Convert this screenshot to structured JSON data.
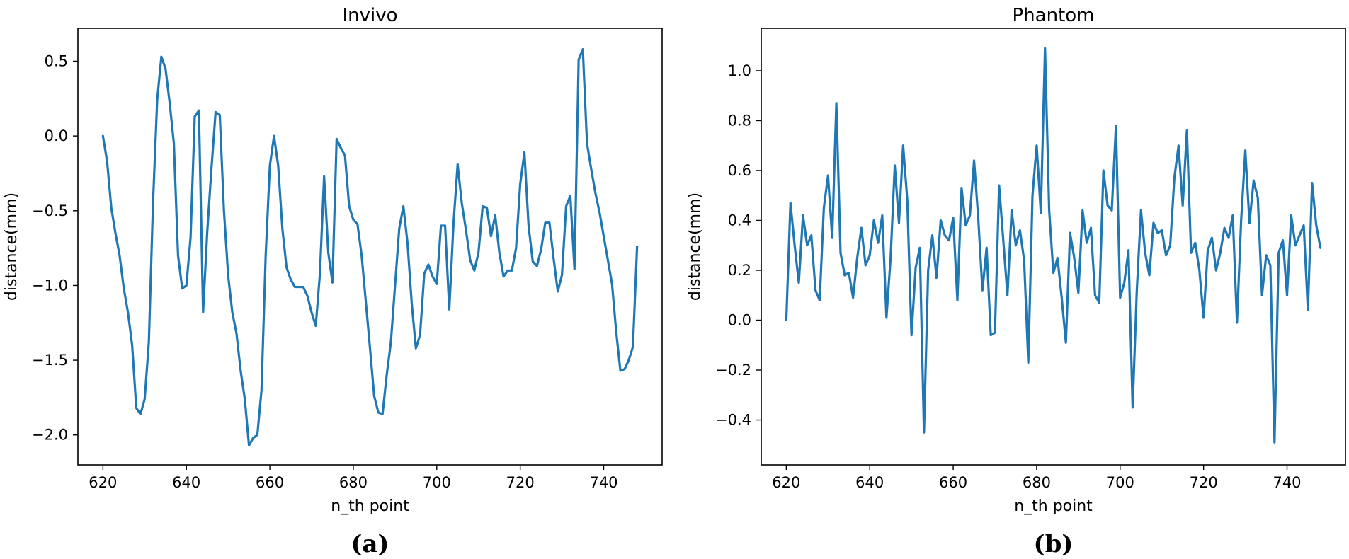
{
  "colors": {
    "line": "#1f77b4",
    "axes": "#000000",
    "background": "#ffffff"
  },
  "chart_data": [
    {
      "type": "line",
      "title": "Invivo",
      "caption": "(a)",
      "xlabel": "n_th point",
      "ylabel": "distance(mm)",
      "xlim": [
        614,
        754
      ],
      "ylim": [
        -2.2,
        0.72
      ],
      "xticks": [
        620,
        640,
        660,
        680,
        700,
        720,
        740
      ],
      "xtick_labels": [
        "620",
        "640",
        "660",
        "680",
        "700",
        "720",
        "740"
      ],
      "yticks": [
        0.5,
        0.0,
        -0.5,
        -1.0,
        -1.5,
        -2.0
      ],
      "ytick_labels": [
        "0.5",
        "0.0",
        "−0.5",
        "−1.0",
        "−1.5",
        "−2.0"
      ],
      "grid": false,
      "series": [
        {
          "x": [
            620,
            621,
            622,
            623,
            624,
            625,
            626,
            627,
            628,
            629,
            630,
            631,
            632,
            633,
            634,
            635,
            636,
            637,
            638,
            639,
            640,
            641,
            642,
            643,
            644,
            645,
            646,
            647,
            648,
            649,
            650,
            651,
            652,
            653,
            654,
            655,
            656,
            657,
            658,
            659,
            660,
            661,
            662,
            663,
            664,
            665,
            666,
            667,
            668,
            669,
            670,
            671,
            672,
            673,
            674,
            675,
            676,
            677,
            678,
            679,
            680,
            681,
            682,
            683,
            684,
            685,
            686,
            687,
            688,
            689,
            690,
            691,
            692,
            693,
            694,
            695,
            696,
            697,
            698,
            699,
            700,
            701,
            702,
            703,
            704,
            705,
            706,
            707,
            708,
            709,
            710,
            711,
            712,
            713,
            714,
            715,
            716,
            717,
            718,
            719,
            720,
            721,
            722,
            723,
            724,
            725,
            726,
            727,
            728,
            729,
            730,
            731,
            732,
            733,
            734,
            735,
            736,
            737,
            738,
            739,
            740,
            741,
            742,
            743,
            744,
            745,
            746,
            747,
            748
          ],
          "y": [
            0.0,
            -0.17,
            -0.48,
            -0.65,
            -0.8,
            -1.02,
            -1.18,
            -1.4,
            -1.82,
            -1.86,
            -1.76,
            -1.38,
            -0.45,
            0.24,
            0.53,
            0.45,
            0.22,
            -0.05,
            -0.8,
            -1.02,
            -1.0,
            -0.68,
            0.13,
            0.17,
            -1.18,
            -0.64,
            -0.22,
            0.16,
            0.14,
            -0.5,
            -0.93,
            -1.18,
            -1.32,
            -1.57,
            -1.76,
            -2.07,
            -2.02,
            -2.0,
            -1.7,
            -0.8,
            -0.2,
            0.0,
            -0.2,
            -0.62,
            -0.88,
            -0.96,
            -1.01,
            -1.01,
            -1.01,
            -1.07,
            -1.18,
            -1.27,
            -0.92,
            -0.27,
            -0.78,
            -0.98,
            -0.02,
            -0.08,
            -0.13,
            -0.47,
            -0.56,
            -0.59,
            -0.8,
            -1.11,
            -1.42,
            -1.74,
            -1.85,
            -1.86,
            -1.6,
            -1.38,
            -1.0,
            -0.62,
            -0.47,
            -0.72,
            -1.12,
            -1.42,
            -1.33,
            -0.92,
            -0.86,
            -0.94,
            -0.99,
            -0.6,
            -0.6,
            -1.16,
            -0.59,
            -0.19,
            -0.45,
            -0.63,
            -0.83,
            -0.9,
            -0.78,
            -0.47,
            -0.48,
            -0.67,
            -0.53,
            -0.78,
            -0.94,
            -0.9,
            -0.9,
            -0.75,
            -0.32,
            -0.11,
            -0.6,
            -0.84,
            -0.87,
            -0.76,
            -0.58,
            -0.58,
            -0.82,
            -1.04,
            -0.93,
            -0.47,
            -0.4,
            -0.89,
            0.51,
            0.58,
            -0.05,
            -0.22,
            -0.38,
            -0.51,
            -0.67,
            -0.83,
            -0.99,
            -1.31,
            -1.57,
            -1.56,
            -1.5,
            -1.41,
            -0.74
          ]
        }
      ]
    },
    {
      "type": "line",
      "title": "Phantom",
      "caption": "(b)",
      "xlabel": "n_th point",
      "ylabel": "distance(mm)",
      "xlim": [
        614,
        754
      ],
      "ylim": [
        -0.58,
        1.17
      ],
      "xticks": [
        620,
        640,
        660,
        680,
        700,
        720,
        740
      ],
      "xtick_labels": [
        "620",
        "640",
        "660",
        "680",
        "700",
        "720",
        "740"
      ],
      "yticks": [
        1.0,
        0.8,
        0.6,
        0.4,
        0.2,
        0.0,
        -0.2,
        -0.4
      ],
      "ytick_labels": [
        "1.0",
        "0.8",
        "0.6",
        "0.4",
        "0.2",
        "0.0",
        "−0.2",
        "−0.4"
      ],
      "grid": false,
      "series": [
        {
          "x": [
            620,
            621,
            622,
            623,
            624,
            625,
            626,
            627,
            628,
            629,
            630,
            631,
            632,
            633,
            634,
            635,
            636,
            637,
            638,
            639,
            640,
            641,
            642,
            643,
            644,
            645,
            646,
            647,
            648,
            649,
            650,
            651,
            652,
            653,
            654,
            655,
            656,
            657,
            658,
            659,
            660,
            661,
            662,
            663,
            664,
            665,
            666,
            667,
            668,
            669,
            670,
            671,
            672,
            673,
            674,
            675,
            676,
            677,
            678,
            679,
            680,
            681,
            682,
            683,
            684,
            685,
            686,
            687,
            688,
            689,
            690,
            691,
            692,
            693,
            694,
            695,
            696,
            697,
            698,
            699,
            700,
            701,
            702,
            703,
            704,
            705,
            706,
            707,
            708,
            709,
            710,
            711,
            712,
            713,
            714,
            715,
            716,
            717,
            718,
            719,
            720,
            721,
            722,
            723,
            724,
            725,
            726,
            727,
            728,
            729,
            730,
            731,
            732,
            733,
            734,
            735,
            736,
            737,
            738,
            739,
            740,
            741,
            742,
            743,
            744,
            745,
            746,
            747,
            748
          ],
          "y": [
            0.0,
            0.47,
            0.3,
            0.15,
            0.42,
            0.3,
            0.34,
            0.12,
            0.08,
            0.45,
            0.58,
            0.33,
            0.87,
            0.27,
            0.18,
            0.19,
            0.09,
            0.25,
            0.37,
            0.22,
            0.26,
            0.4,
            0.31,
            0.42,
            0.01,
            0.25,
            0.62,
            0.39,
            0.7,
            0.48,
            -0.06,
            0.21,
            0.29,
            -0.45,
            0.2,
            0.34,
            0.17,
            0.4,
            0.34,
            0.32,
            0.41,
            0.08,
            0.53,
            0.38,
            0.42,
            0.64,
            0.41,
            0.12,
            0.29,
            -0.06,
            -0.05,
            0.54,
            0.32,
            0.1,
            0.44,
            0.3,
            0.36,
            0.24,
            -0.17,
            0.5,
            0.7,
            0.43,
            1.09,
            0.44,
            0.19,
            0.25,
            0.09,
            -0.09,
            0.35,
            0.25,
            0.11,
            0.44,
            0.31,
            0.37,
            0.1,
            0.07,
            0.6,
            0.46,
            0.44,
            0.78,
            0.09,
            0.15,
            0.28,
            -0.35,
            0.12,
            0.44,
            0.27,
            0.18,
            0.39,
            0.35,
            0.36,
            0.26,
            0.3,
            0.57,
            0.7,
            0.46,
            0.76,
            0.27,
            0.31,
            0.2,
            0.01,
            0.28,
            0.33,
            0.2,
            0.27,
            0.37,
            0.33,
            0.42,
            -0.01,
            0.4,
            0.68,
            0.39,
            0.56,
            0.49,
            0.1,
            0.26,
            0.22,
            -0.49,
            0.27,
            0.32,
            0.1,
            0.42,
            0.3,
            0.34,
            0.38,
            0.04,
            0.55,
            0.38,
            0.29
          ]
        }
      ]
    }
  ]
}
